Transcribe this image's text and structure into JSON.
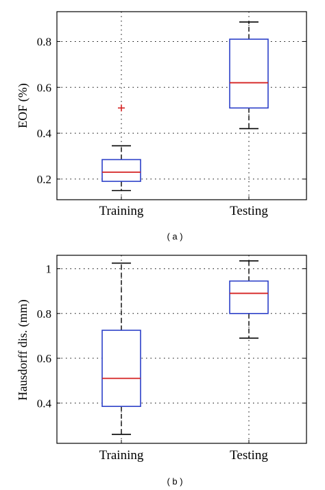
{
  "chart_data": [
    {
      "type": "box",
      "caption": "( a )",
      "ylabel": "EOF (%)",
      "ylim": [
        0.11,
        0.93
      ],
      "yticks": [
        0.2,
        0.4,
        0.6,
        0.8
      ],
      "ytick_labels": [
        "0.2",
        "0.4",
        "0.6",
        "0.8"
      ],
      "grid": true,
      "categories": [
        "Training",
        "Testing"
      ],
      "boxes": [
        {
          "category": "Training",
          "whisker_low": 0.15,
          "q1": 0.19,
          "median": 0.23,
          "q3": 0.285,
          "whisker_high": 0.345,
          "outliers": [
            0.51
          ]
        },
        {
          "category": "Testing",
          "whisker_low": 0.42,
          "q1": 0.51,
          "median": 0.62,
          "q3": 0.81,
          "whisker_high": 0.885,
          "outliers": []
        }
      ],
      "colors": {
        "box": "#2b3fc8",
        "median": "#d42020",
        "outlier": "#d42020",
        "whisker": "#000000"
      }
    },
    {
      "type": "box",
      "caption": "( b )",
      "ylabel": "Hausdorff dis. (mm)",
      "ylim": [
        0.22,
        1.06
      ],
      "yticks": [
        0.4,
        0.6,
        0.8,
        1.0
      ],
      "ytick_labels": [
        "0.4",
        "0.6",
        "0.8",
        "1"
      ],
      "grid": true,
      "categories": [
        "Training",
        "Testing"
      ],
      "boxes": [
        {
          "category": "Training",
          "whisker_low": 0.26,
          "q1": 0.385,
          "median": 0.51,
          "q3": 0.725,
          "whisker_high": 1.025,
          "outliers": []
        },
        {
          "category": "Testing",
          "whisker_low": 0.69,
          "q1": 0.8,
          "median": 0.89,
          "q3": 0.945,
          "whisker_high": 1.035,
          "outliers": []
        }
      ],
      "colors": {
        "box": "#2b3fc8",
        "median": "#d42020",
        "outlier": "#d42020",
        "whisker": "#000000"
      }
    }
  ]
}
